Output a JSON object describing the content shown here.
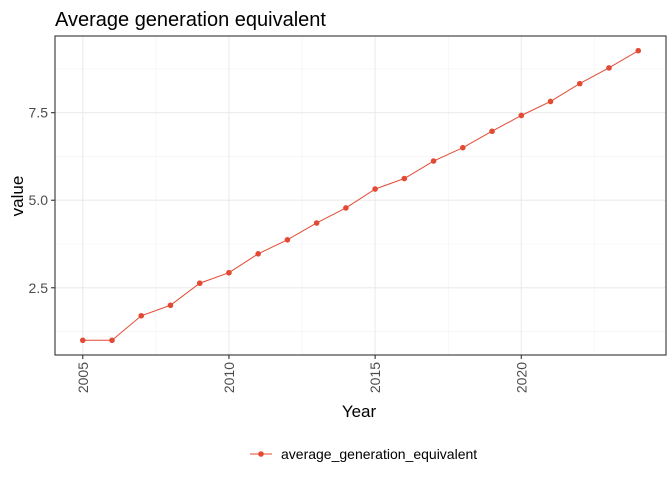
{
  "chart_data": {
    "type": "line",
    "title": "Average generation equivalent",
    "xlabel": "Year",
    "ylabel": "value",
    "x": [
      2005,
      2006,
      2007,
      2008,
      2009,
      2010,
      2011,
      2012,
      2013,
      2014,
      2015,
      2016,
      2017,
      2018,
      2019,
      2020,
      2021,
      2022,
      2023,
      2024
    ],
    "series": [
      {
        "name": "average_generation_equivalent",
        "color": "#e34a33",
        "values": [
          1.0,
          1.0,
          1.7,
          2.0,
          2.63,
          2.93,
          3.47,
          3.87,
          4.35,
          4.78,
          5.32,
          5.62,
          6.12,
          6.5,
          6.97,
          7.42,
          7.82,
          8.33,
          8.78,
          9.27
        ]
      }
    ],
    "xlim": [
      2004.05,
      2024.95
    ],
    "ylim": [
      0.58,
      9.69
    ],
    "xticks": [
      2005,
      2010,
      2015,
      2020
    ],
    "xtick_labels": [
      "2005",
      "2010",
      "2015",
      "2020"
    ],
    "yticks": [
      2.5,
      5.0,
      7.5
    ],
    "ytick_labels": [
      "2.5",
      "5.0",
      "7.5"
    ],
    "x_tick_label_rotation": "vertical",
    "grid": true,
    "legend_position": "bottom",
    "theme": "bw"
  }
}
